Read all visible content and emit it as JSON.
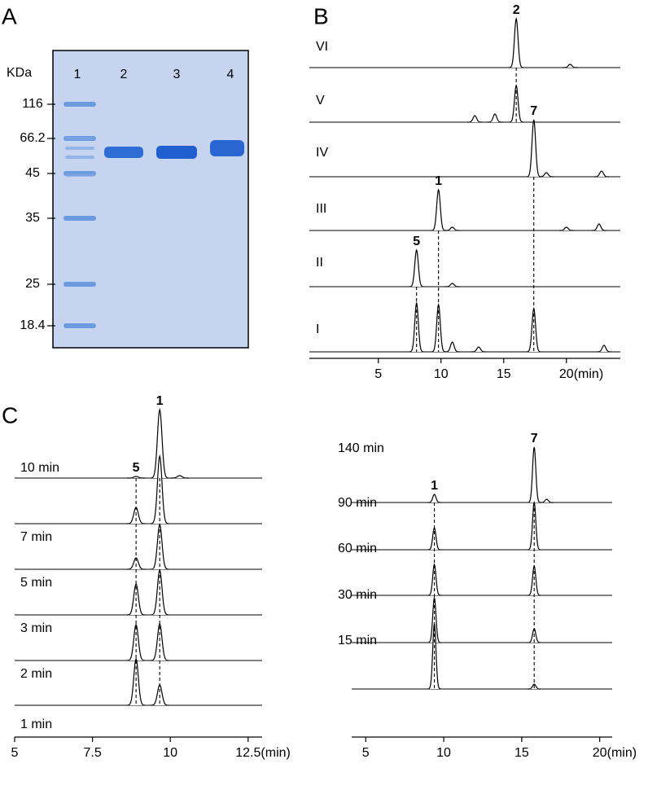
{
  "panel_A": {
    "label": "A",
    "unit": "KDa",
    "lanes": [
      "1",
      "2",
      "3",
      "4"
    ],
    "markers": [
      116,
      66.2,
      45,
      35,
      25,
      18.4
    ]
  },
  "panel_B": {
    "label": "B",
    "type": "chromatogram",
    "xlim": [
      -0.5,
      24.3
    ],
    "xticks": [
      5,
      10,
      15,
      20
    ],
    "x_unit": "(min)",
    "traces": [
      {
        "name": "VI",
        "peaks": [
          {
            "x": 16.0,
            "height": 60
          },
          {
            "x": 20.3,
            "height": 4
          }
        ]
      },
      {
        "name": "V",
        "peaks": [
          {
            "x": 12.7,
            "height": 8
          },
          {
            "x": 14.3,
            "height": 10
          },
          {
            "x": 16.0,
            "height": 45
          }
        ]
      },
      {
        "name": "IV",
        "peaks": [
          {
            "x": 17.4,
            "height": 70
          },
          {
            "x": 18.4,
            "height": 5
          },
          {
            "x": 22.8,
            "height": 7
          }
        ]
      },
      {
        "name": "III",
        "peaks": [
          {
            "x": 9.8,
            "height": 50
          },
          {
            "x": 10.9,
            "height": 4
          },
          {
            "x": 20.0,
            "height": 4
          },
          {
            "x": 22.6,
            "height": 8
          }
        ]
      },
      {
        "name": "II",
        "peaks": [
          {
            "x": 8.05,
            "height": 45
          },
          {
            "x": 10.9,
            "height": 4
          }
        ]
      },
      {
        "name": "I",
        "peaks": [
          {
            "x": 8.05,
            "height": 60
          },
          {
            "x": 9.8,
            "height": 58
          },
          {
            "x": 10.9,
            "height": 12
          },
          {
            "x": 13.0,
            "height": 6
          },
          {
            "x": 17.4,
            "height": 53
          },
          {
            "x": 23.0,
            "height": 8
          }
        ]
      }
    ],
    "annotations": [
      {
        "label": "2",
        "x": 16.0
      },
      {
        "label": "7",
        "x": 17.4
      },
      {
        "label": "1",
        "x": 9.8
      },
      {
        "label": "5",
        "x": 8.05
      }
    ]
  },
  "panel_C": {
    "label": "C",
    "charts": [
      {
        "type": "chromatogram",
        "xlim": [
          5,
          12.95
        ],
        "xticks": [
          5,
          7.5,
          10,
          12.5
        ],
        "x_unit": "(min)",
        "traces": [
          {
            "name": "10 min",
            "peaks": [
              {
                "x": 8.9,
                "height": 2
              },
              {
                "x": 9.66,
                "height": 84
              },
              {
                "x": 10.3,
                "height": 3
              }
            ]
          },
          {
            "name": "7 min",
            "peaks": [
              {
                "x": 8.9,
                "height": 20
              },
              {
                "x": 9.66,
                "height": 83
              }
            ]
          },
          {
            "name": "5 min",
            "peaks": [
              {
                "x": 8.9,
                "height": 14
              },
              {
                "x": 9.66,
                "height": 55
              }
            ]
          },
          {
            "name": "3 min",
            "peaks": [
              {
                "x": 8.9,
                "height": 38
              },
              {
                "x": 9.66,
                "height": 55
              }
            ]
          },
          {
            "name": "2 min",
            "peaks": [
              {
                "x": 8.9,
                "height": 44
              },
              {
                "x": 9.66,
                "height": 45
              }
            ]
          },
          {
            "name": "1 min",
            "peaks": [
              {
                "x": 8.9,
                "height": 57
              },
              {
                "x": 9.66,
                "height": 25
              }
            ]
          }
        ],
        "annotations": [
          {
            "label": "1",
            "x": 9.66
          },
          {
            "label": "5",
            "x": 8.9
          }
        ]
      },
      {
        "type": "chromatogram",
        "xlim": [
          4.1,
          20.8
        ],
        "xticks": [
          5,
          10,
          15,
          20
        ],
        "x_unit": "(min)",
        "traces": [
          {
            "name": "140 min",
            "peaks": [
              {
                "x": 9.4,
                "height": 10
              },
              {
                "x": 15.8,
                "height": 68
              },
              {
                "x": 16.6,
                "height": 4
              }
            ]
          },
          {
            "name": "90 min",
            "peaks": [
              {
                "x": 9.4,
                "height": 27
              },
              {
                "x": 15.8,
                "height": 58
              }
            ]
          },
          {
            "name": "60 min",
            "peaks": [
              {
                "x": 9.4,
                "height": 38
              },
              {
                "x": 15.8,
                "height": 36
              }
            ]
          },
          {
            "name": "30 min",
            "peaks": [
              {
                "x": 9.4,
                "height": 55
              },
              {
                "x": 15.8,
                "height": 17
              }
            ]
          },
          {
            "name": "15 min",
            "peaks": [
              {
                "x": 9.4,
                "height": 80
              },
              {
                "x": 15.8,
                "height": 6
              }
            ]
          }
        ],
        "annotations": [
          {
            "label": "1",
            "x": 9.4
          },
          {
            "label": "7",
            "x": 15.8
          }
        ]
      }
    ]
  }
}
